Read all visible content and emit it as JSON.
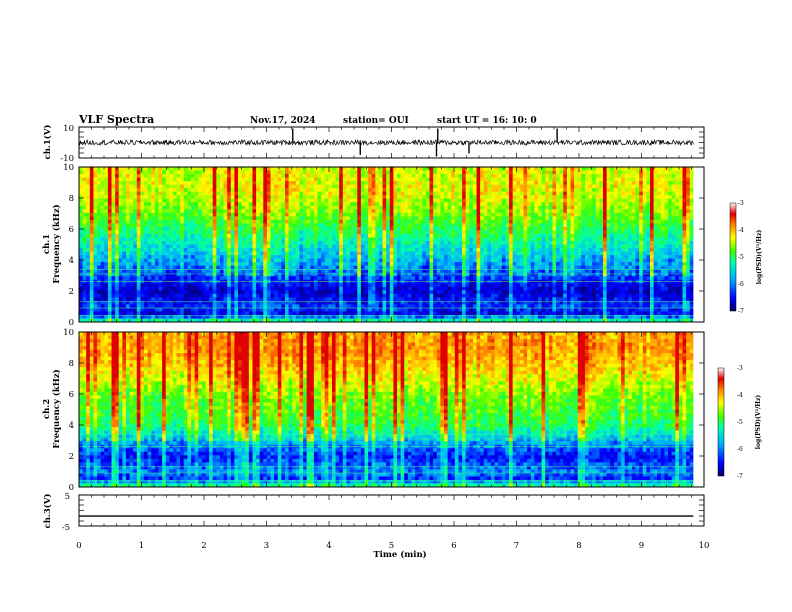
{
  "header": {
    "title": "VLF Spectra",
    "date": "Nov.17, 2024",
    "station": "station= OUI",
    "start_ut": "start  UT =   16: 10: 0"
  },
  "chart_data": [
    {
      "type": "line",
      "name": "ch1-waveform",
      "ylabel": "ch.1(V)",
      "ylim": [
        -10,
        10
      ],
      "ytick_labels": [
        "10",
        "-10"
      ],
      "xlim": [
        0,
        10
      ],
      "baseline": 0,
      "spikes": [
        {
          "t": 3.42,
          "v": 9
        },
        {
          "t": 4.5,
          "v": -8
        },
        {
          "t": 5.72,
          "v": -9
        },
        {
          "t": 5.74,
          "v": 9
        },
        {
          "t": 6.24,
          "v": -7
        },
        {
          "t": 7.65,
          "v": 9
        }
      ]
    },
    {
      "type": "heatmap",
      "name": "ch1-spectrogram",
      "ylabel": "ch.1\nFrequency (kHz)",
      "ylabel_line1": "ch.1",
      "ylabel_line2": "Frequency  (kHz)",
      "ylim": [
        0,
        10
      ],
      "ytick_labels": [
        "0",
        "2",
        "4",
        "6",
        "8",
        "10"
      ],
      "xlim": [
        0,
        10
      ],
      "color_range": [
        -7,
        -3
      ],
      "colorbar_label": "log(PSD)(V²/Hz)",
      "colorbar_ticks": [
        "-3",
        "-4",
        "-5",
        "-6",
        "-7"
      ],
      "levels_by_freq_khz": [
        {
          "f": 0.0,
          "v": -5.0
        },
        {
          "f": 0.5,
          "v": -6.6
        },
        {
          "f": 1.0,
          "v": -6.3
        },
        {
          "f": 2.0,
          "v": -6.7
        },
        {
          "f": 3.0,
          "v": -6.2
        },
        {
          "f": 4.0,
          "v": -5.8
        },
        {
          "f": 5.0,
          "v": -5.4
        },
        {
          "f": 6.0,
          "v": -5.0
        },
        {
          "f": 7.0,
          "v": -4.6
        },
        {
          "f": 8.0,
          "v": -4.3
        },
        {
          "f": 9.0,
          "v": -4.2
        },
        {
          "f": 10.0,
          "v": -4.3
        }
      ]
    },
    {
      "type": "heatmap",
      "name": "ch2-spectrogram",
      "ylabel": "ch.2\nFrequency (kHz)",
      "ylabel_line1": "ch.2",
      "ylabel_line2": "Frequency  (kHz)",
      "ylim": [
        0,
        10
      ],
      "ytick_labels": [
        "0",
        "2",
        "4",
        "6",
        "8",
        "10"
      ],
      "xlim": [
        0,
        10
      ],
      "color_range": [
        -7,
        -3
      ],
      "colorbar_label": "log(PSD)(V²/Hz)",
      "colorbar_ticks": [
        "-3",
        "-4",
        "-5",
        "-6",
        "-7"
      ],
      "levels_by_freq_khz": [
        {
          "f": 0.0,
          "v": -5.0
        },
        {
          "f": 0.5,
          "v": -6.3
        },
        {
          "f": 1.0,
          "v": -6.0
        },
        {
          "f": 2.0,
          "v": -6.4
        },
        {
          "f": 3.0,
          "v": -5.8
        },
        {
          "f": 4.0,
          "v": -5.0
        },
        {
          "f": 5.0,
          "v": -4.8
        },
        {
          "f": 6.0,
          "v": -4.6
        },
        {
          "f": 7.0,
          "v": -4.2
        },
        {
          "f": 8.0,
          "v": -3.9
        },
        {
          "f": 9.0,
          "v": -3.7
        },
        {
          "f": 10.0,
          "v": -3.8
        }
      ]
    },
    {
      "type": "line",
      "name": "ch3-waveform",
      "ylabel": "ch.3(V)",
      "ylim": [
        -5,
        5
      ],
      "ytick_labels": [
        "5",
        "-5"
      ],
      "xlim": [
        0,
        10
      ],
      "baseline": -1.8
    }
  ],
  "xaxis": {
    "label": "Time  (min)",
    "ticks": [
      "0",
      "1",
      "2",
      "3",
      "4",
      "5",
      "6",
      "7",
      "8",
      "9",
      "10"
    ],
    "range": [
      0,
      10
    ],
    "data_end": 9.83
  },
  "colors": {
    "scale": [
      "#000080",
      "#0000ff",
      "#00b0ff",
      "#00ffb0",
      "#40ff00",
      "#ffff00",
      "#ff8000",
      "#e00000",
      "#ffffff"
    ]
  }
}
